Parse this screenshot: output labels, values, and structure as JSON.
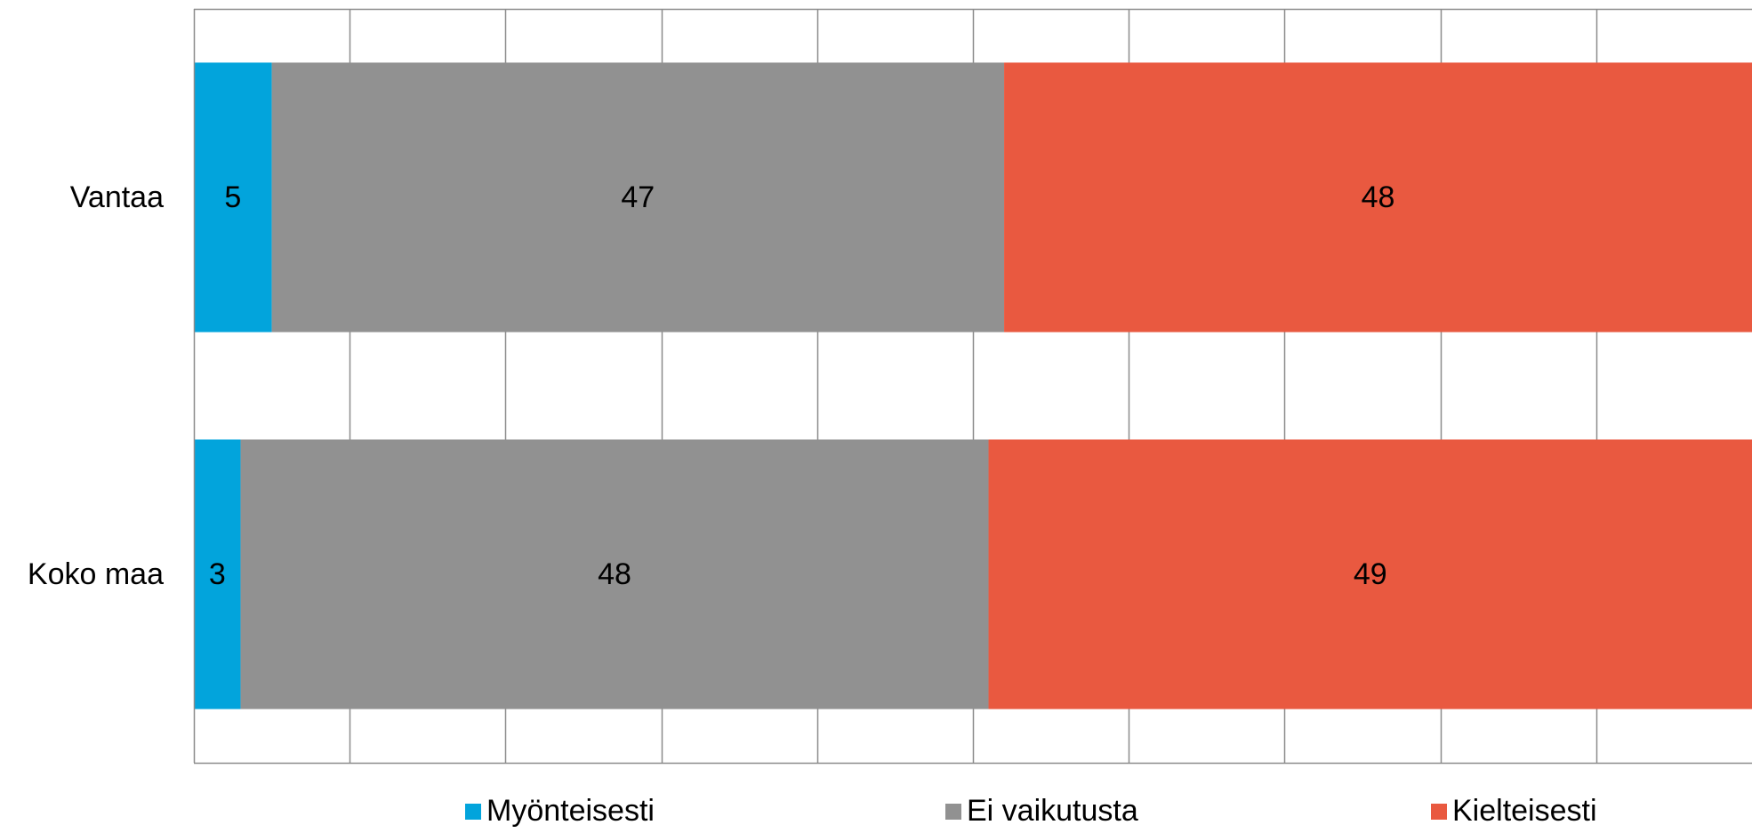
{
  "chart_data": {
    "type": "bar",
    "orientation": "horizontal",
    "stacked": true,
    "categories": [
      "Vantaa",
      "Koko maa"
    ],
    "series": [
      {
        "name": "Myönteisesti",
        "values": [
          5,
          3
        ],
        "color": "#02A4DC"
      },
      {
        "name": "Ei vaikutusta",
        "values": [
          47,
          48
        ],
        "color": "#919191"
      },
      {
        "name": "Kielteisesti",
        "values": [
          48,
          49
        ],
        "color": "#E95940"
      }
    ],
    "xlim": [
      0,
      100
    ],
    "grid": true,
    "legend_position": "bottom"
  }
}
